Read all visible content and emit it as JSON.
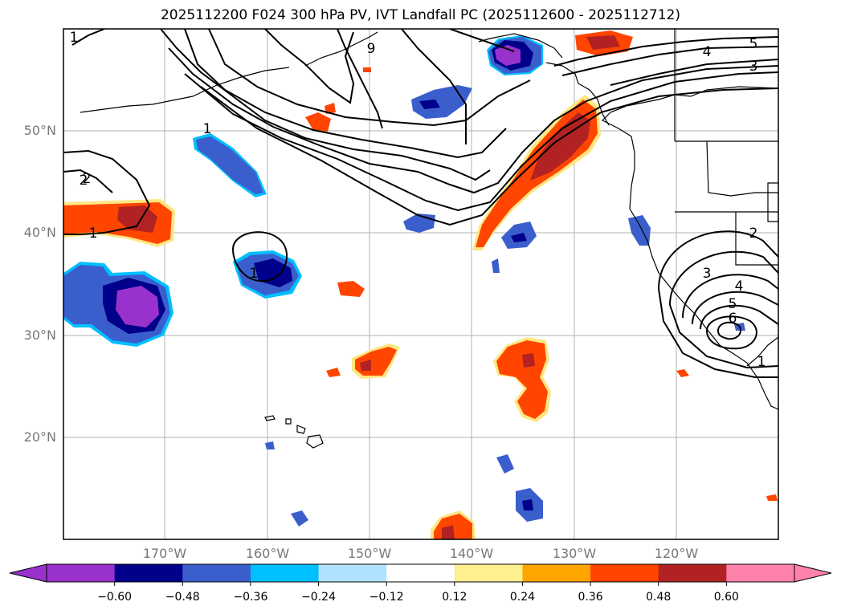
{
  "title": "2025112200 F024 300 hPa PV, IVT Landfall PC (2025112600 - 2025112712)",
  "latitudes": [
    "50°N",
    "40°N",
    "30°N",
    "20°N"
  ],
  "longitudes": [
    "170°W",
    "160°W",
    "150°W",
    "140°W",
    "130°W",
    "120°W"
  ],
  "colorbar": {
    "colors": [
      "#9932cc",
      "#00008b",
      "#3a5fcd",
      "#00bfff",
      "#b0e2ff",
      "#ffffff",
      "#fff08f",
      "#ffa500",
      "#ff4500",
      "#b22222",
      "#ff82ab"
    ],
    "ticks": [
      "−0.60",
      "−0.48",
      "−0.36",
      "−0.24",
      "−0.12",
      "0.12",
      "0.24",
      "0.36",
      "0.48",
      "0.60"
    ]
  },
  "contour_labels": [
    "1",
    "2",
    "9",
    "1",
    "5",
    "4",
    "3",
    "1",
    "2",
    "1",
    "2",
    "3",
    "4",
    "5",
    "6",
    "1"
  ]
}
